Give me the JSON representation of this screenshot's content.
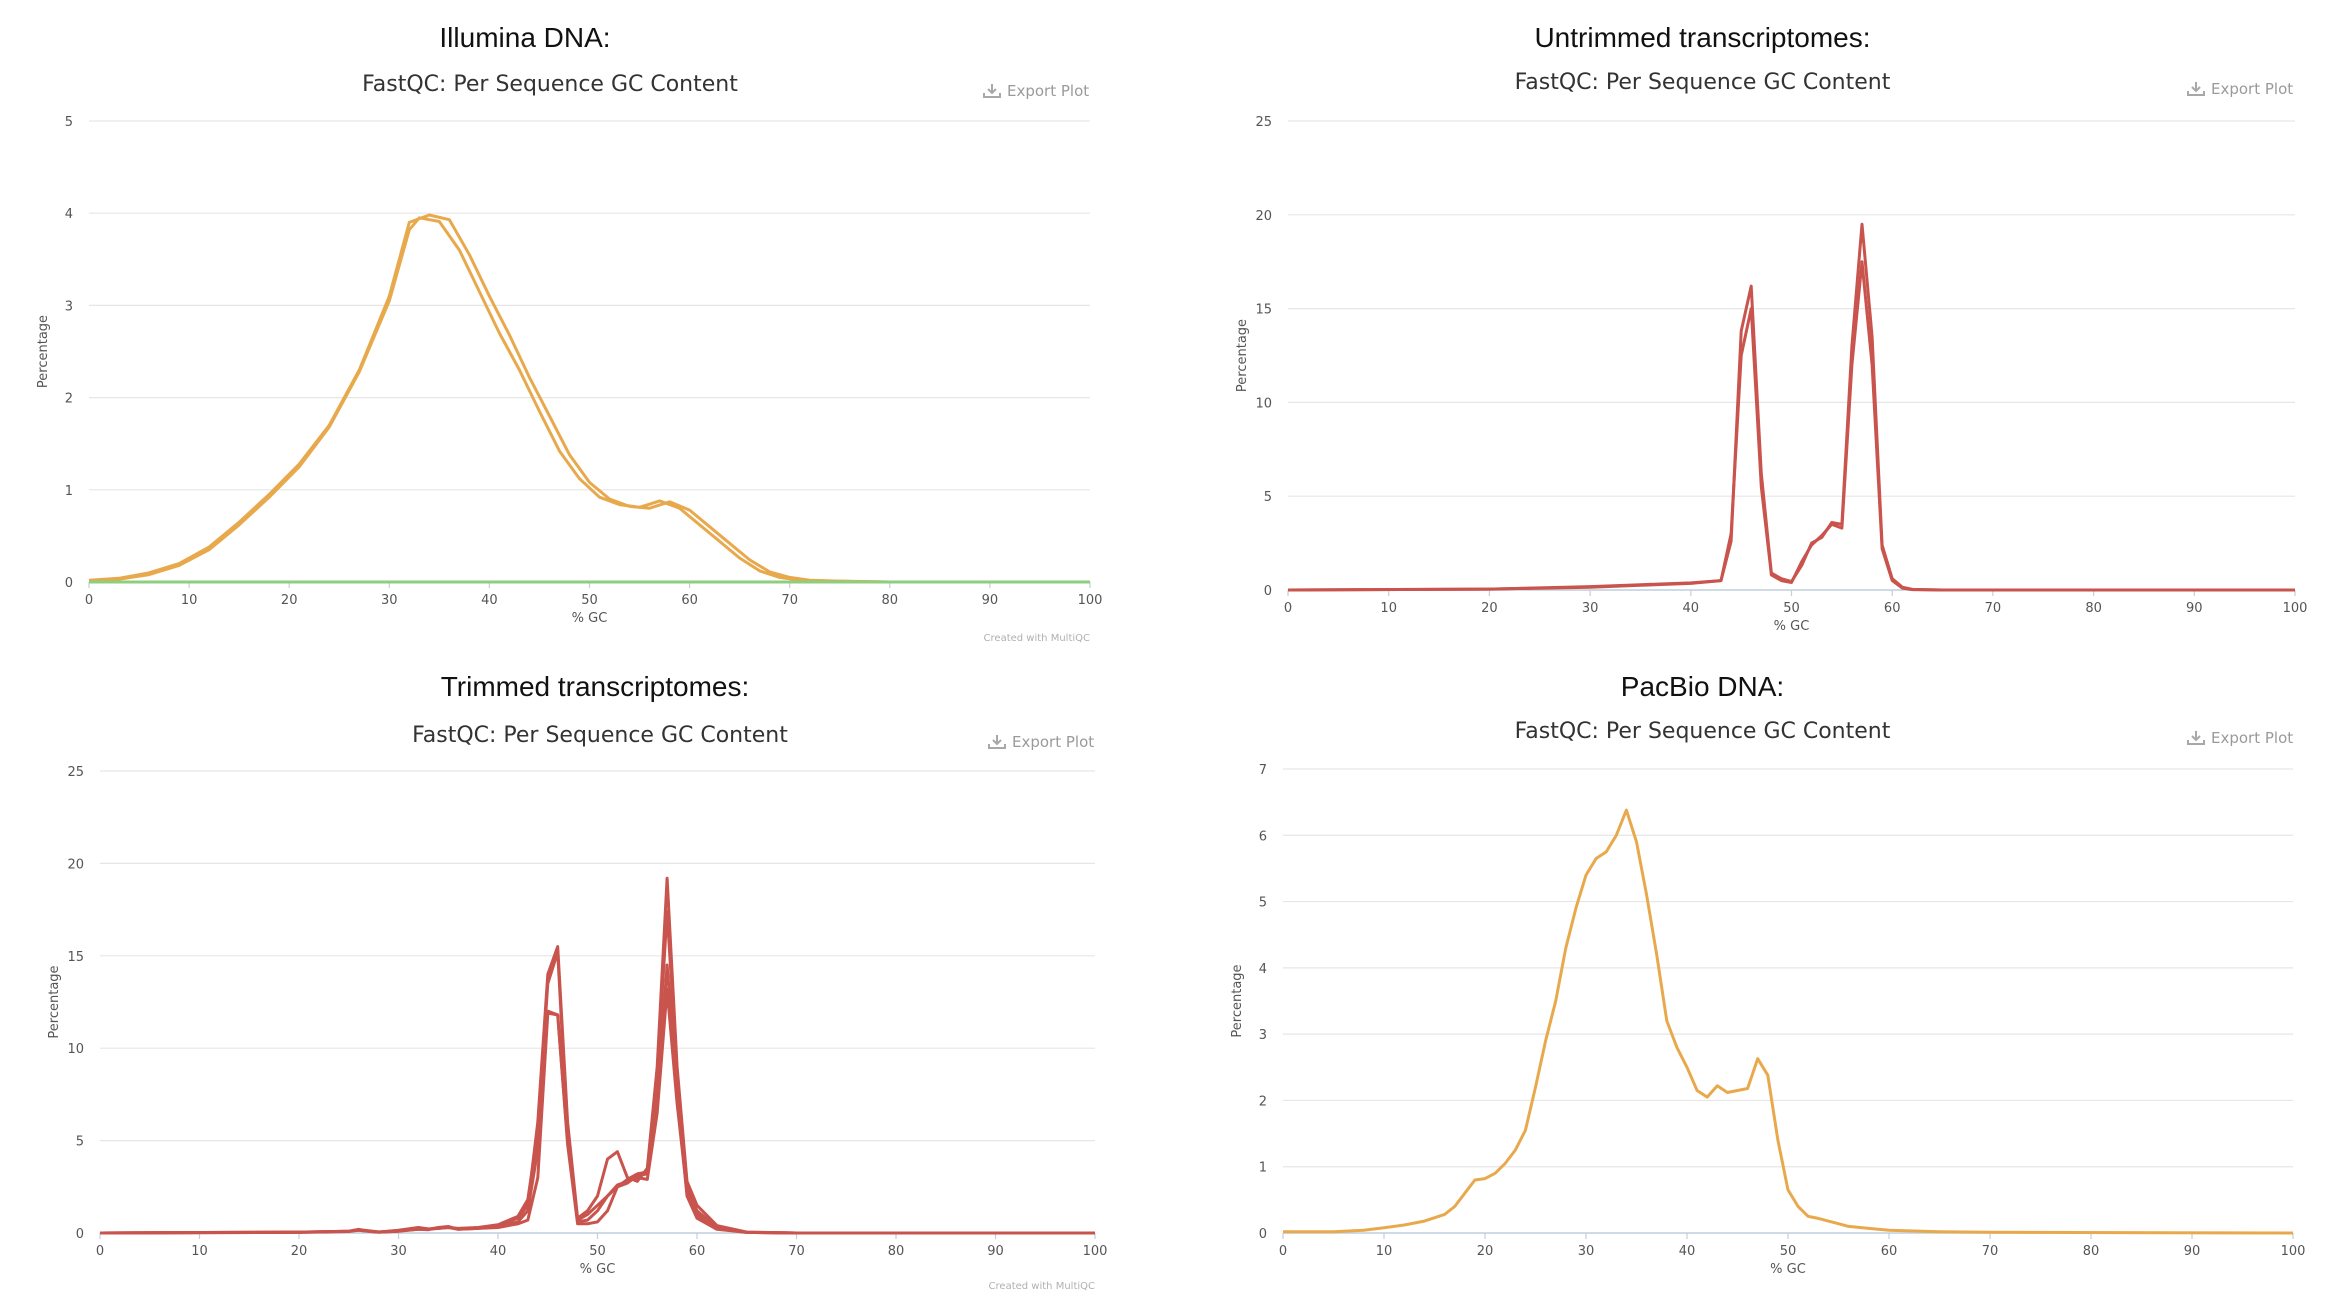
{
  "panels": [
    {
      "heading": "Illumina DNA:",
      "plot_title": "FastQC: Per Sequence GC Content",
      "export_label": "Export Plot",
      "credit": "Created with MultiQC"
    },
    {
      "heading": "Untrimmed transcriptomes:",
      "plot_title": "FastQC: Per Sequence GC Content",
      "export_label": "Export Plot",
      "credit": ""
    },
    {
      "heading": "Trimmed transcriptomes:",
      "plot_title": "FastQC: Per Sequence GC Content",
      "export_label": "Export Plot",
      "credit": "Created with MultiQC"
    },
    {
      "heading": "PacBio DNA:",
      "plot_title": "FastQC: Per Sequence GC Content",
      "export_label": "Export Plot",
      "credit": ""
    }
  ],
  "chart_data": [
    {
      "type": "line",
      "title": "FastQC: Per Sequence GC Content",
      "xlabel": "% GC",
      "ylabel": "Percentage",
      "xlim": [
        0,
        100
      ],
      "ylim": [
        0,
        5
      ],
      "xticks": [
        0,
        10,
        20,
        30,
        40,
        50,
        60,
        70,
        80,
        90,
        100
      ],
      "yticks": [
        0,
        1,
        2,
        3,
        4,
        5
      ],
      "grid": true,
      "series": [
        {
          "color": "#e8a94c",
          "x": [
            0,
            3,
            6,
            9,
            12,
            15,
            18,
            21,
            24,
            27,
            30,
            32,
            34,
            36,
            38,
            40,
            42,
            44,
            46,
            48,
            50,
            52,
            54,
            56,
            58,
            60,
            62,
            64,
            66,
            68,
            70,
            72,
            75,
            80,
            90,
            100
          ],
          "y": [
            0.02,
            0.04,
            0.1,
            0.2,
            0.38,
            0.65,
            0.95,
            1.28,
            1.7,
            2.3,
            3.1,
            3.9,
            3.98,
            3.93,
            3.55,
            3.1,
            2.68,
            2.22,
            1.8,
            1.38,
            1.08,
            0.9,
            0.82,
            0.8,
            0.87,
            0.78,
            0.6,
            0.42,
            0.24,
            0.11,
            0.05,
            0.02,
            0.01,
            0,
            0,
            0
          ]
        },
        {
          "color": "#e8a94c",
          "x": [
            0,
            3,
            6,
            9,
            12,
            15,
            18,
            21,
            24,
            27,
            30,
            32,
            33,
            35,
            37,
            39,
            41,
            43,
            45,
            47,
            49,
            51,
            53,
            55,
            57,
            59,
            61,
            63,
            65,
            67,
            69,
            71,
            74,
            80,
            90,
            100
          ],
          "y": [
            0.01,
            0.03,
            0.08,
            0.18,
            0.35,
            0.62,
            0.92,
            1.25,
            1.68,
            2.28,
            3.05,
            3.82,
            3.95,
            3.91,
            3.6,
            3.15,
            2.7,
            2.3,
            1.85,
            1.42,
            1.12,
            0.92,
            0.84,
            0.81,
            0.88,
            0.8,
            0.62,
            0.44,
            0.26,
            0.12,
            0.05,
            0.02,
            0.01,
            0,
            0,
            0
          ]
        },
        {
          "color": "#8ccf7e",
          "x": [
            0,
            100
          ],
          "y": [
            0,
            0
          ]
        }
      ]
    },
    {
      "type": "line",
      "title": "FastQC: Per Sequence GC Content",
      "xlabel": "% GC",
      "ylabel": "Percentage",
      "xlim": [
        0,
        100
      ],
      "ylim": [
        0,
        25
      ],
      "xticks": [
        0,
        10,
        20,
        30,
        40,
        50,
        60,
        70,
        80,
        90,
        100
      ],
      "yticks": [
        0,
        5,
        10,
        15,
        20,
        25
      ],
      "grid": true,
      "series": [
        {
          "color": "#c9544d",
          "x": [
            0,
            20,
            30,
            35,
            40,
            43,
            44,
            45,
            46,
            47,
            48,
            49,
            50,
            51,
            52,
            53,
            54,
            55,
            56,
            57,
            58,
            59,
            60,
            61,
            62,
            65,
            70,
            100
          ],
          "y": [
            0,
            0.05,
            0.15,
            0.25,
            0.35,
            0.5,
            3,
            12.5,
            15,
            5.5,
            0.8,
            0.5,
            0.4,
            1.5,
            2.4,
            2.9,
            3.5,
            3.3,
            12,
            17.5,
            12,
            2.2,
            0.5,
            0.1,
            0.02,
            0,
            0,
            0
          ]
        },
        {
          "color": "#c9544d",
          "x": [
            0,
            20,
            30,
            35,
            40,
            43,
            44,
            45,
            46,
            47,
            48,
            49,
            50,
            51,
            52,
            53,
            54,
            55,
            56,
            57,
            58,
            59,
            60,
            61,
            62,
            65,
            70,
            100
          ],
          "y": [
            0,
            0.05,
            0.18,
            0.28,
            0.38,
            0.5,
            2.6,
            13.8,
            16.2,
            6.2,
            0.9,
            0.6,
            0.45,
            1.3,
            2.5,
            2.8,
            3.6,
            3.5,
            13,
            19.5,
            13.5,
            2.4,
            0.6,
            0.15,
            0.03,
            0,
            0,
            0
          ]
        }
      ]
    },
    {
      "type": "line",
      "title": "FastQC: Per Sequence GC Content",
      "xlabel": "% GC",
      "ylabel": "Percentage",
      "xlim": [
        0,
        100
      ],
      "ylim": [
        0,
        25
      ],
      "xticks": [
        0,
        10,
        20,
        30,
        40,
        50,
        60,
        70,
        80,
        90,
        100
      ],
      "yticks": [
        0,
        5,
        10,
        15,
        20,
        25
      ],
      "grid": true,
      "series": [
        {
          "color": "#c9544d",
          "x": [
            0,
            20,
            25,
            26,
            27,
            28,
            30,
            32,
            33,
            34,
            35,
            36,
            38,
            40,
            42,
            43,
            44,
            45,
            46,
            47,
            48,
            49,
            50,
            51,
            52,
            53,
            54,
            55,
            56,
            57,
            58,
            59,
            60,
            62,
            65,
            70,
            100
          ],
          "y": [
            0,
            0.05,
            0.1,
            0.2,
            0.1,
            0.05,
            0.1,
            0.25,
            0.2,
            0.3,
            0.35,
            0.2,
            0.25,
            0.4,
            0.8,
            1.5,
            6,
            14,
            15.5,
            6,
            0.8,
            1.2,
            2,
            4,
            4.4,
            3,
            2.8,
            3.5,
            9,
            19.2,
            9,
            2.8,
            1.5,
            0.4,
            0.05,
            0,
            0
          ]
        },
        {
          "color": "#c9544d",
          "x": [
            0,
            20,
            25,
            26,
            27,
            28,
            30,
            32,
            33,
            34,
            35,
            36,
            38,
            40,
            42,
            43,
            44,
            45,
            46,
            47,
            48,
            49,
            50,
            51,
            52,
            53,
            54,
            55,
            56,
            57,
            58,
            59,
            60,
            62,
            65,
            70,
            100
          ],
          "y": [
            0,
            0.03,
            0.08,
            0.15,
            0.1,
            0.05,
            0.15,
            0.3,
            0.22,
            0.25,
            0.3,
            0.25,
            0.3,
            0.45,
            0.9,
            1.8,
            5.5,
            13.5,
            15.2,
            5.2,
            0.7,
            1,
            1.5,
            2,
            2.5,
            2.9,
            3.2,
            3.3,
            8.5,
            17.4,
            8.5,
            2.5,
            1.2,
            0.3,
            0.04,
            0,
            0
          ]
        },
        {
          "color": "#c9544d",
          "x": [
            0,
            20,
            25,
            26,
            27,
            28,
            30,
            32,
            33,
            34,
            35,
            36,
            38,
            40,
            42,
            43,
            44,
            45,
            46,
            47,
            48,
            49,
            50,
            51,
            52,
            53,
            54,
            55,
            56,
            57,
            58,
            59,
            60,
            62,
            65,
            70,
            100
          ],
          "y": [
            0,
            0.04,
            0.09,
            0.18,
            0.12,
            0.06,
            0.12,
            0.2,
            0.18,
            0.28,
            0.32,
            0.22,
            0.28,
            0.35,
            0.6,
            1.2,
            4.5,
            12,
            11.8,
            5,
            0.6,
            0.7,
            1.2,
            2,
            2.6,
            2.8,
            3,
            2.9,
            6.5,
            13.2,
            7,
            2.2,
            1,
            0.25,
            0.03,
            0,
            0
          ]
        },
        {
          "color": "#c9544d",
          "x": [
            0,
            20,
            25,
            26,
            27,
            28,
            30,
            32,
            33,
            34,
            35,
            36,
            38,
            40,
            42,
            43,
            44,
            45,
            46,
            47,
            48,
            49,
            50,
            51,
            52,
            53,
            54,
            55,
            56,
            57,
            58,
            59,
            60,
            62,
            65,
            70,
            100
          ],
          "y": [
            0,
            0.05,
            0.1,
            0.15,
            0.1,
            0.05,
            0.1,
            0.2,
            0.2,
            0.25,
            0.3,
            0.2,
            0.25,
            0.3,
            0.5,
            0.7,
            3,
            11.9,
            11.8,
            4.8,
            0.5,
            0.5,
            0.6,
            1.2,
            2.5,
            2.7,
            3.1,
            3.2,
            7.2,
            14.5,
            7.5,
            2,
            0.8,
            0.2,
            0.03,
            0,
            0
          ]
        }
      ]
    },
    {
      "type": "line",
      "title": "FastQC: Per Sequence GC Content",
      "xlabel": "% GC",
      "ylabel": "Percentage",
      "xlim": [
        0,
        100
      ],
      "ylim": [
        0,
        7
      ],
      "xticks": [
        0,
        10,
        20,
        30,
        40,
        50,
        60,
        70,
        80,
        90,
        100
      ],
      "yticks": [
        0,
        1,
        2,
        3,
        4,
        5,
        6,
        7
      ],
      "grid": true,
      "series": [
        {
          "color": "#e8a94c",
          "x": [
            0,
            5,
            8,
            10,
            12,
            14,
            16,
            17,
            18,
            19,
            20,
            21,
            22,
            23,
            24,
            25,
            26,
            27,
            28,
            29,
            30,
            31,
            32,
            33,
            34,
            35,
            36,
            37,
            38,
            39,
            40,
            41,
            42,
            43,
            44,
            45,
            46,
            47,
            48,
            49,
            50,
            51,
            52,
            53,
            54,
            55,
            56,
            58,
            60,
            65,
            70,
            100
          ],
          "y": [
            0.02,
            0.02,
            0.04,
            0.08,
            0.12,
            0.18,
            0.28,
            0.4,
            0.6,
            0.8,
            0.82,
            0.9,
            1.05,
            1.25,
            1.55,
            2.2,
            2.9,
            3.5,
            4.3,
            4.9,
            5.4,
            5.65,
            5.75,
            6.0,
            6.38,
            5.9,
            5.1,
            4.2,
            3.2,
            2.8,
            2.5,
            2.15,
            2.05,
            2.22,
            2.12,
            2.15,
            2.18,
            2.63,
            2.38,
            1.4,
            0.65,
            0.4,
            0.25,
            0.22,
            0.18,
            0.14,
            0.1,
            0.07,
            0.04,
            0.02,
            0.01,
            0
          ]
        }
      ]
    }
  ]
}
